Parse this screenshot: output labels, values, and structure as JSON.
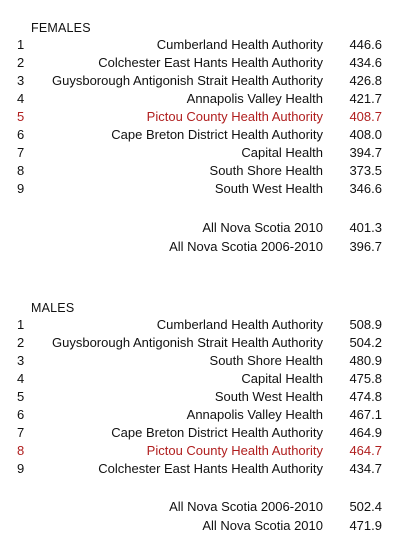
{
  "females": {
    "title": "FEMALES",
    "rows": [
      {
        "rank": "1",
        "name": "Cumberland Health Authority",
        "value": "446.6",
        "highlight": false
      },
      {
        "rank": "2",
        "name": "Colchester East Hants Health Authority",
        "value": "434.6",
        "highlight": false
      },
      {
        "rank": "3",
        "name": "Guysborough Antigonish Strait Health Authority",
        "value": "426.8",
        "highlight": false
      },
      {
        "rank": "4",
        "name": "Annapolis Valley Health",
        "value": "421.7",
        "highlight": false
      },
      {
        "rank": "5",
        "name": "Pictou County Health Authority",
        "value": "408.7",
        "highlight": true
      },
      {
        "rank": "6",
        "name": "Cape Breton District Health Authority",
        "value": "408.0",
        "highlight": false
      },
      {
        "rank": "7",
        "name": "Capital Health",
        "value": "394.7",
        "highlight": false
      },
      {
        "rank": "8",
        "name": "South Shore Health",
        "value": "373.5",
        "highlight": false
      },
      {
        "rank": "9",
        "name": "South West Health",
        "value": "346.6",
        "highlight": false
      }
    ],
    "totals": [
      {
        "name": "All Nova Scotia 2010",
        "value": "401.3"
      },
      {
        "name": "All Nova Scotia 2006-2010",
        "value": "396.7"
      }
    ]
  },
  "males": {
    "title": "MALES",
    "rows": [
      {
        "rank": "1",
        "name": "Cumberland Health Authority",
        "value": "508.9",
        "highlight": false
      },
      {
        "rank": "2",
        "name": "Guysborough Antigonish Strait Health Authority",
        "value": "504.2",
        "highlight": false
      },
      {
        "rank": "3",
        "name": "South Shore Health",
        "value": "480.9",
        "highlight": false
      },
      {
        "rank": "4",
        "name": "Capital Health",
        "value": "475.8",
        "highlight": false
      },
      {
        "rank": "5",
        "name": "South West Health",
        "value": "474.8",
        "highlight": false
      },
      {
        "rank": "6",
        "name": "Annapolis Valley Health",
        "value": "467.1",
        "highlight": false
      },
      {
        "rank": "7",
        "name": "Cape Breton District Health Authority",
        "value": "464.9",
        "highlight": false
      },
      {
        "rank": "8",
        "name": "Pictou County Health Authority",
        "value": "464.7",
        "highlight": true
      },
      {
        "rank": "9",
        "name": "Colchester East Hants Health Authority",
        "value": "434.7",
        "highlight": false
      }
    ],
    "totals": [
      {
        "name": "All Nova Scotia 2006-2010",
        "value": "502.4"
      },
      {
        "name": "All Nova Scotia 2010",
        "value": "471.9"
      }
    ]
  },
  "colors": {
    "highlight": "#b01e1e",
    "text": "#111111"
  }
}
